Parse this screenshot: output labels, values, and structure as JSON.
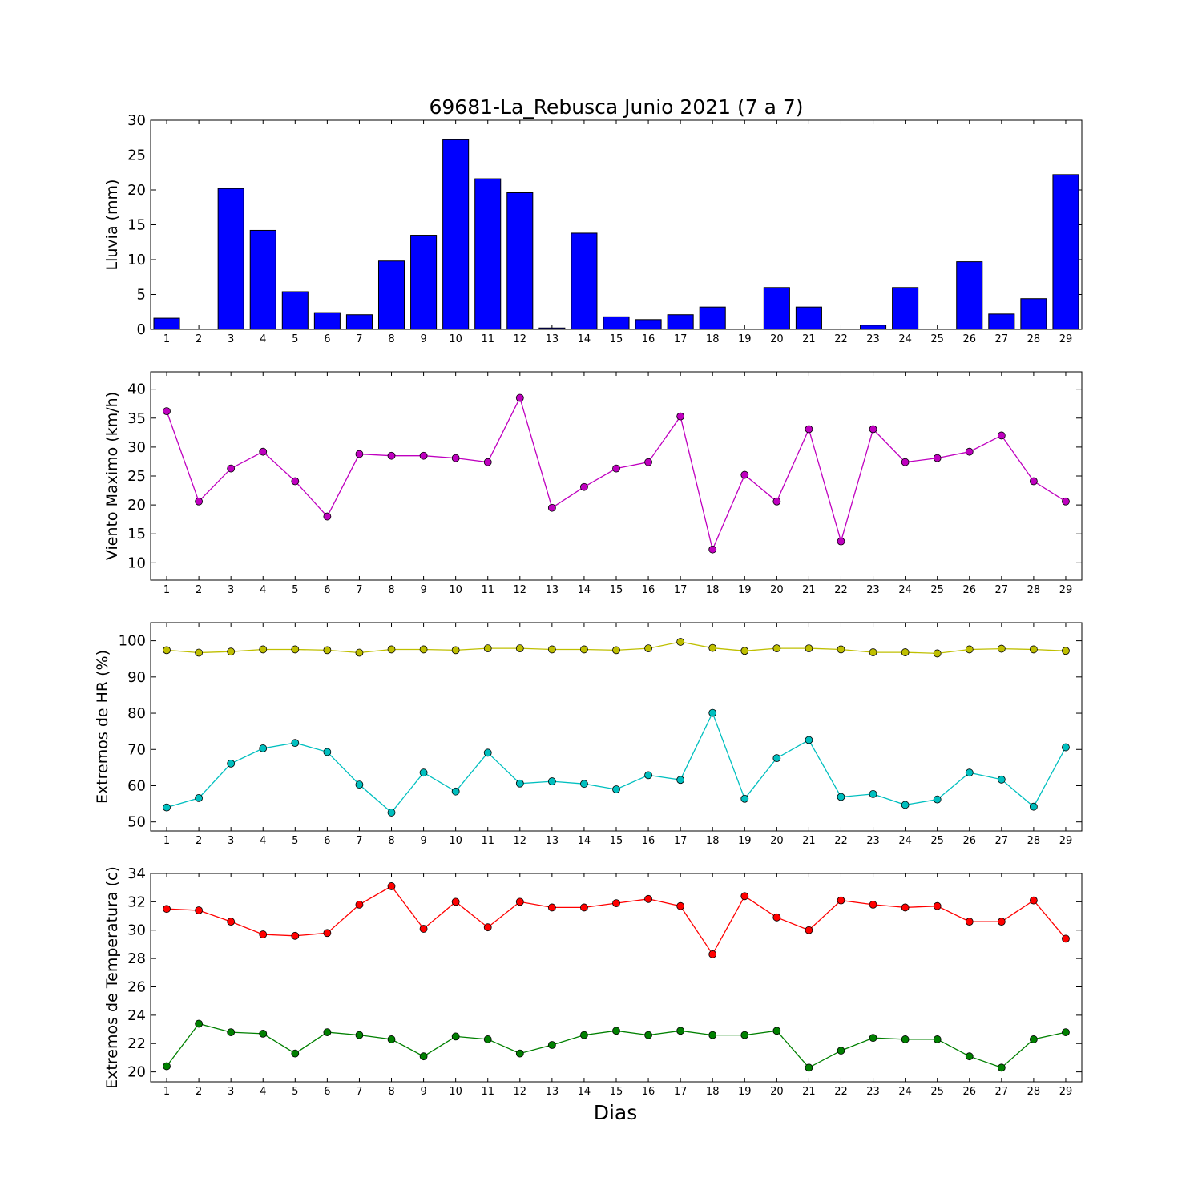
{
  "title": "69681-La_Rebusca Junio 2021  (7 a 7)",
  "xlabel": "Dias",
  "days": [
    1,
    2,
    3,
    4,
    5,
    6,
    7,
    8,
    9,
    10,
    11,
    12,
    13,
    14,
    15,
    16,
    17,
    18,
    19,
    20,
    21,
    22,
    23,
    24,
    25,
    26,
    27,
    28,
    29
  ],
  "chart_data": [
    {
      "type": "bar",
      "ylabel": "Lluvia (mm)",
      "ylim": [
        0,
        30
      ],
      "yticks": [
        0,
        5,
        10,
        15,
        20,
        25,
        30
      ],
      "series": [
        {
          "color": "#0000ff",
          "values": [
            1.6,
            0,
            20.2,
            14.2,
            5.4,
            2.4,
            2.1,
            9.8,
            13.5,
            27.2,
            21.6,
            19.6,
            0.2,
            13.8,
            1.8,
            1.4,
            2.1,
            3.2,
            0,
            6.0,
            3.2,
            0,
            0.6,
            6.0,
            0,
            9.7,
            2.2,
            4.4,
            22.2
          ]
        }
      ]
    },
    {
      "type": "line",
      "ylabel": "Viento Maximo (km/h)",
      "ylim": [
        7,
        43
      ],
      "yticks": [
        10,
        15,
        20,
        25,
        30,
        35,
        40
      ],
      "series": [
        {
          "color": "#bf00bf",
          "values": [
            36.2,
            20.6,
            26.3,
            29.2,
            24.1,
            18.0,
            28.8,
            28.5,
            28.5,
            28.1,
            27.4,
            38.5,
            19.5,
            23.1,
            26.3,
            27.4,
            35.3,
            12.3,
            25.2,
            20.6,
            33.1,
            13.7,
            33.1,
            27.4,
            28.1,
            29.2,
            32.0,
            24.1,
            20.6
          ]
        }
      ]
    },
    {
      "type": "line",
      "ylabel": "Extremos de HR (%)",
      "ylim": [
        47.5,
        105
      ],
      "yticks": [
        50,
        60,
        70,
        80,
        90,
        100
      ],
      "series": [
        {
          "color": "#bfbf00",
          "values": [
            97.4,
            96.7,
            97.0,
            97.6,
            97.6,
            97.4,
            96.7,
            97.6,
            97.6,
            97.4,
            97.9,
            97.9,
            97.6,
            97.6,
            97.4,
            97.9,
            99.7,
            98.0,
            97.2,
            97.9,
            97.9,
            97.6,
            96.8,
            96.8,
            96.5,
            97.6,
            97.8,
            97.6,
            97.2
          ]
        },
        {
          "color": "#00bfbf",
          "values": [
            54.0,
            56.6,
            66.1,
            70.3,
            71.8,
            69.3,
            60.3,
            52.6,
            63.6,
            58.4,
            69.1,
            60.6,
            61.2,
            60.5,
            59.0,
            62.9,
            61.6,
            80.1,
            56.4,
            67.6,
            72.6,
            56.9,
            57.7,
            54.7,
            56.2,
            63.6,
            61.7,
            54.2,
            70.6
          ]
        }
      ]
    },
    {
      "type": "line",
      "ylabel": "Extremos de Temperatura (c)",
      "ylim": [
        19.3,
        34
      ],
      "yticks": [
        20,
        22,
        24,
        26,
        28,
        30,
        32,
        34
      ],
      "series": [
        {
          "color": "#ff0000",
          "values": [
            31.5,
            31.4,
            30.6,
            29.7,
            29.6,
            29.8,
            31.8,
            33.1,
            30.1,
            32.0,
            30.2,
            32.0,
            31.6,
            31.6,
            31.9,
            32.2,
            31.7,
            28.3,
            32.4,
            30.9,
            30.0,
            32.1,
            31.8,
            31.6,
            31.7,
            30.6,
            30.6,
            32.1,
            29.4
          ]
        },
        {
          "color": "#008000",
          "values": [
            20.4,
            23.4,
            22.8,
            22.7,
            21.3,
            22.8,
            22.6,
            22.3,
            21.1,
            22.5,
            22.3,
            21.3,
            21.9,
            22.6,
            22.9,
            22.6,
            22.9,
            22.6,
            22.6,
            22.9,
            20.3,
            21.5,
            22.4,
            22.3,
            22.3,
            21.1,
            20.3,
            22.3,
            22.8
          ]
        }
      ]
    }
  ]
}
